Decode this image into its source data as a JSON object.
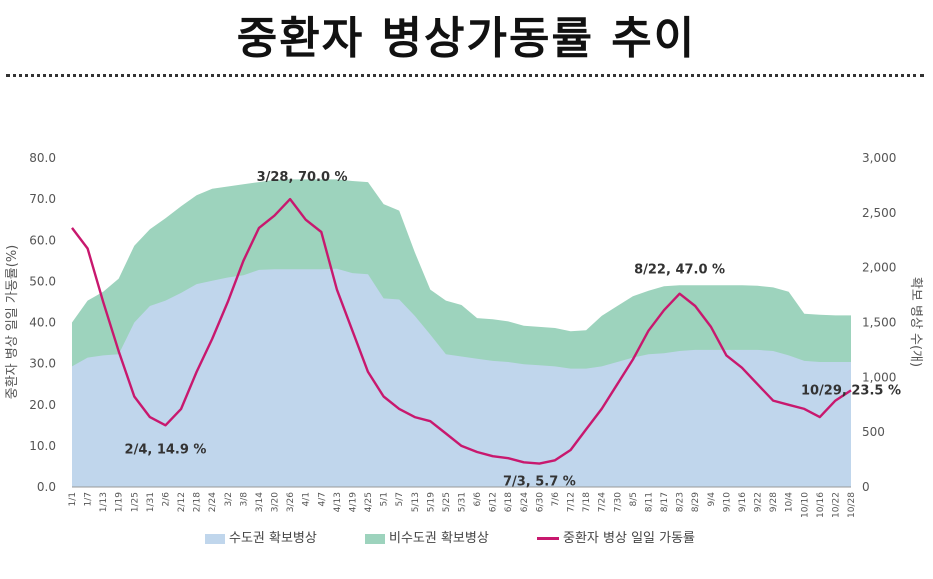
{
  "title": "중환자 병상가동률 추이",
  "chart_data": {
    "type": "area",
    "xlabels": [
      "1/1",
      "1/7",
      "1/13",
      "1/19",
      "1/25",
      "1/31",
      "2/6",
      "2/12",
      "2/18",
      "2/24",
      "3/2",
      "3/8",
      "3/14",
      "3/20",
      "3/26",
      "4/1",
      "4/7",
      "4/13",
      "4/19",
      "4/25",
      "5/1",
      "5/7",
      "5/13",
      "5/19",
      "5/25",
      "5/31",
      "6/6",
      "6/12",
      "6/18",
      "6/24",
      "6/30",
      "7/6",
      "7/12",
      "7/18",
      "7/24",
      "7/30",
      "8/5",
      "8/11",
      "8/17",
      "8/23",
      "8/29",
      "9/4",
      "9/10",
      "9/16",
      "9/22",
      "9/28",
      "10/4",
      "10/10",
      "10/16",
      "10/22",
      "10/28"
    ],
    "y_left": {
      "label": "중환자 병상 일일 가동률(%)",
      "min": 0,
      "max": 80,
      "ticks": [
        "0.0",
        "10.0",
        "20.0",
        "30.0",
        "40.0",
        "50.0",
        "60.0",
        "70.0",
        "80.0"
      ]
    },
    "y_right": {
      "label": "확보 병상 수(개)",
      "min": 0,
      "max": 3000,
      "ticks": [
        "0",
        "500",
        "1,000",
        "1,500",
        "2,000",
        "2,500",
        "3,000"
      ]
    },
    "series": [
      {
        "name": "수도권 확보병상",
        "kind": "area",
        "axis": "right",
        "color": "#c0d6ec",
        "values": [
          1100,
          1180,
          1200,
          1210,
          1500,
          1650,
          1700,
          1770,
          1850,
          1880,
          1910,
          1930,
          1980,
          1985,
          1985,
          1985,
          1985,
          1990,
          1950,
          1940,
          1720,
          1710,
          1560,
          1390,
          1210,
          1190,
          1170,
          1150,
          1140,
          1120,
          1110,
          1100,
          1080,
          1080,
          1100,
          1140,
          1180,
          1210,
          1220,
          1240,
          1250,
          1250,
          1250,
          1250,
          1250,
          1240,
          1200,
          1150,
          1140,
          1140,
          1140
        ]
      },
      {
        "name": "비수도권 확보병상",
        "kind": "area",
        "axis": "right",
        "color": "#9dd3bd",
        "values": [
          1500,
          1700,
          1780,
          1900,
          2200,
          2350,
          2450,
          2560,
          2660,
          2720,
          2740,
          2760,
          2780,
          2800,
          2805,
          2805,
          2805,
          2805,
          2790,
          2780,
          2580,
          2520,
          2140,
          1800,
          1700,
          1660,
          1540,
          1530,
          1510,
          1470,
          1460,
          1450,
          1420,
          1430,
          1560,
          1650,
          1740,
          1790,
          1830,
          1840,
          1840,
          1840,
          1840,
          1840,
          1835,
          1820,
          1780,
          1580,
          1570,
          1565,
          1565
        ]
      },
      {
        "name": "중환자 병상 일일 가동률",
        "kind": "line",
        "axis": "left",
        "color": "#c8186e",
        "values": [
          63.0,
          58.0,
          45.0,
          33.0,
          22.0,
          17.0,
          15.0,
          19.0,
          28.0,
          36.0,
          45.0,
          55.0,
          63.0,
          66.0,
          70.0,
          65.0,
          62.0,
          48.0,
          38.0,
          28.0,
          22.0,
          19.0,
          17.0,
          16.0,
          13.0,
          10.0,
          8.5,
          7.5,
          7.0,
          6.0,
          5.7,
          6.5,
          9.0,
          14.0,
          19.0,
          25.0,
          31.0,
          38.0,
          43.0,
          47.0,
          44.0,
          39.0,
          32.0,
          29.0,
          25.0,
          21.0,
          20.0,
          19.0,
          17.0,
          21.0,
          23.5
        ]
      }
    ],
    "annotations": [
      {
        "text": "2/4, 14.9 %",
        "index": 6,
        "value": 14.9
      },
      {
        "text": "3/28, 70.0 %",
        "index": 14,
        "value": 70.0
      },
      {
        "text": "7/3, 5.7 %",
        "index": 30,
        "value": 5.7
      },
      {
        "text": "8/22, 47.0 %",
        "index": 39,
        "value": 47.0
      },
      {
        "text": "10/29, 23.5 %",
        "index": 50,
        "value": 23.5
      }
    ]
  }
}
